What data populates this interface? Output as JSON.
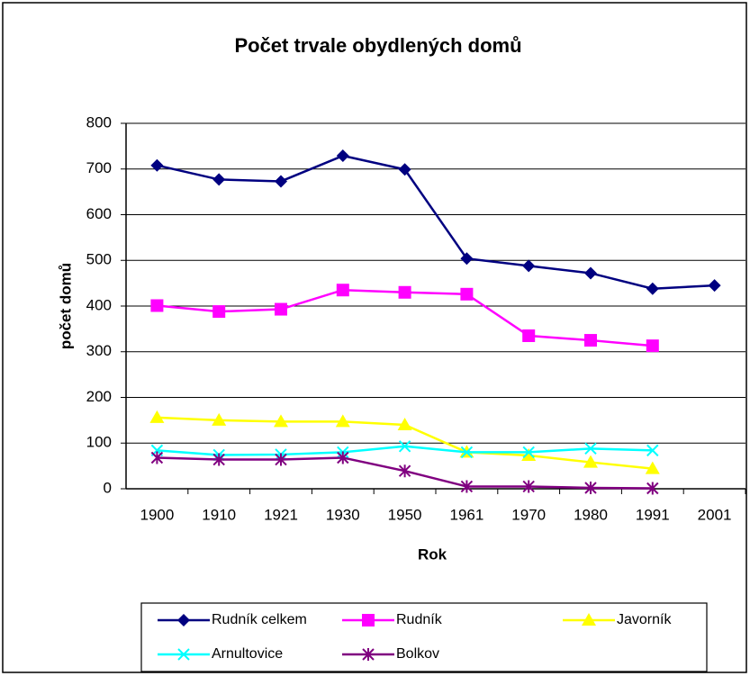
{
  "chart_data": {
    "type": "line",
    "title": "Počet trvale obydlených domů",
    "x_label": "Rok",
    "y_label": "počet domů",
    "categories": [
      "1900",
      "1910",
      "1921",
      "1930",
      "1950",
      "1961",
      "1970",
      "1980",
      "1991",
      "2001"
    ],
    "series": [
      {
        "name": "Rudník celkem",
        "color": "#000080",
        "marker": "diamond",
        "values": [
          708,
          677,
          673,
          729,
          699,
          504,
          488,
          472,
          438,
          445
        ]
      },
      {
        "name": "Rudník",
        "color": "#ff00ff",
        "marker": "square",
        "values": [
          401,
          388,
          393,
          435,
          430,
          426,
          335,
          325,
          313,
          null
        ]
      },
      {
        "name": "Javorník",
        "color": "#ffff00",
        "marker": "triangle",
        "values": [
          156,
          150,
          147,
          147,
          140,
          80,
          73,
          58,
          44,
          null
        ]
      },
      {
        "name": "Arnultovice",
        "color": "#00ffff",
        "marker": "x",
        "values": [
          84,
          74,
          75,
          80,
          93,
          80,
          80,
          88,
          84,
          null
        ]
      },
      {
        "name": "Bolkov",
        "color": "#800080",
        "marker": "star",
        "values": [
          68,
          64,
          64,
          68,
          39,
          5,
          5,
          2,
          1,
          null
        ]
      }
    ],
    "ylim": [
      0,
      800
    ],
    "yticks": [
      0,
      100,
      200,
      300,
      400,
      500,
      600,
      700,
      800
    ],
    "grid": true,
    "legend": "bottom"
  }
}
